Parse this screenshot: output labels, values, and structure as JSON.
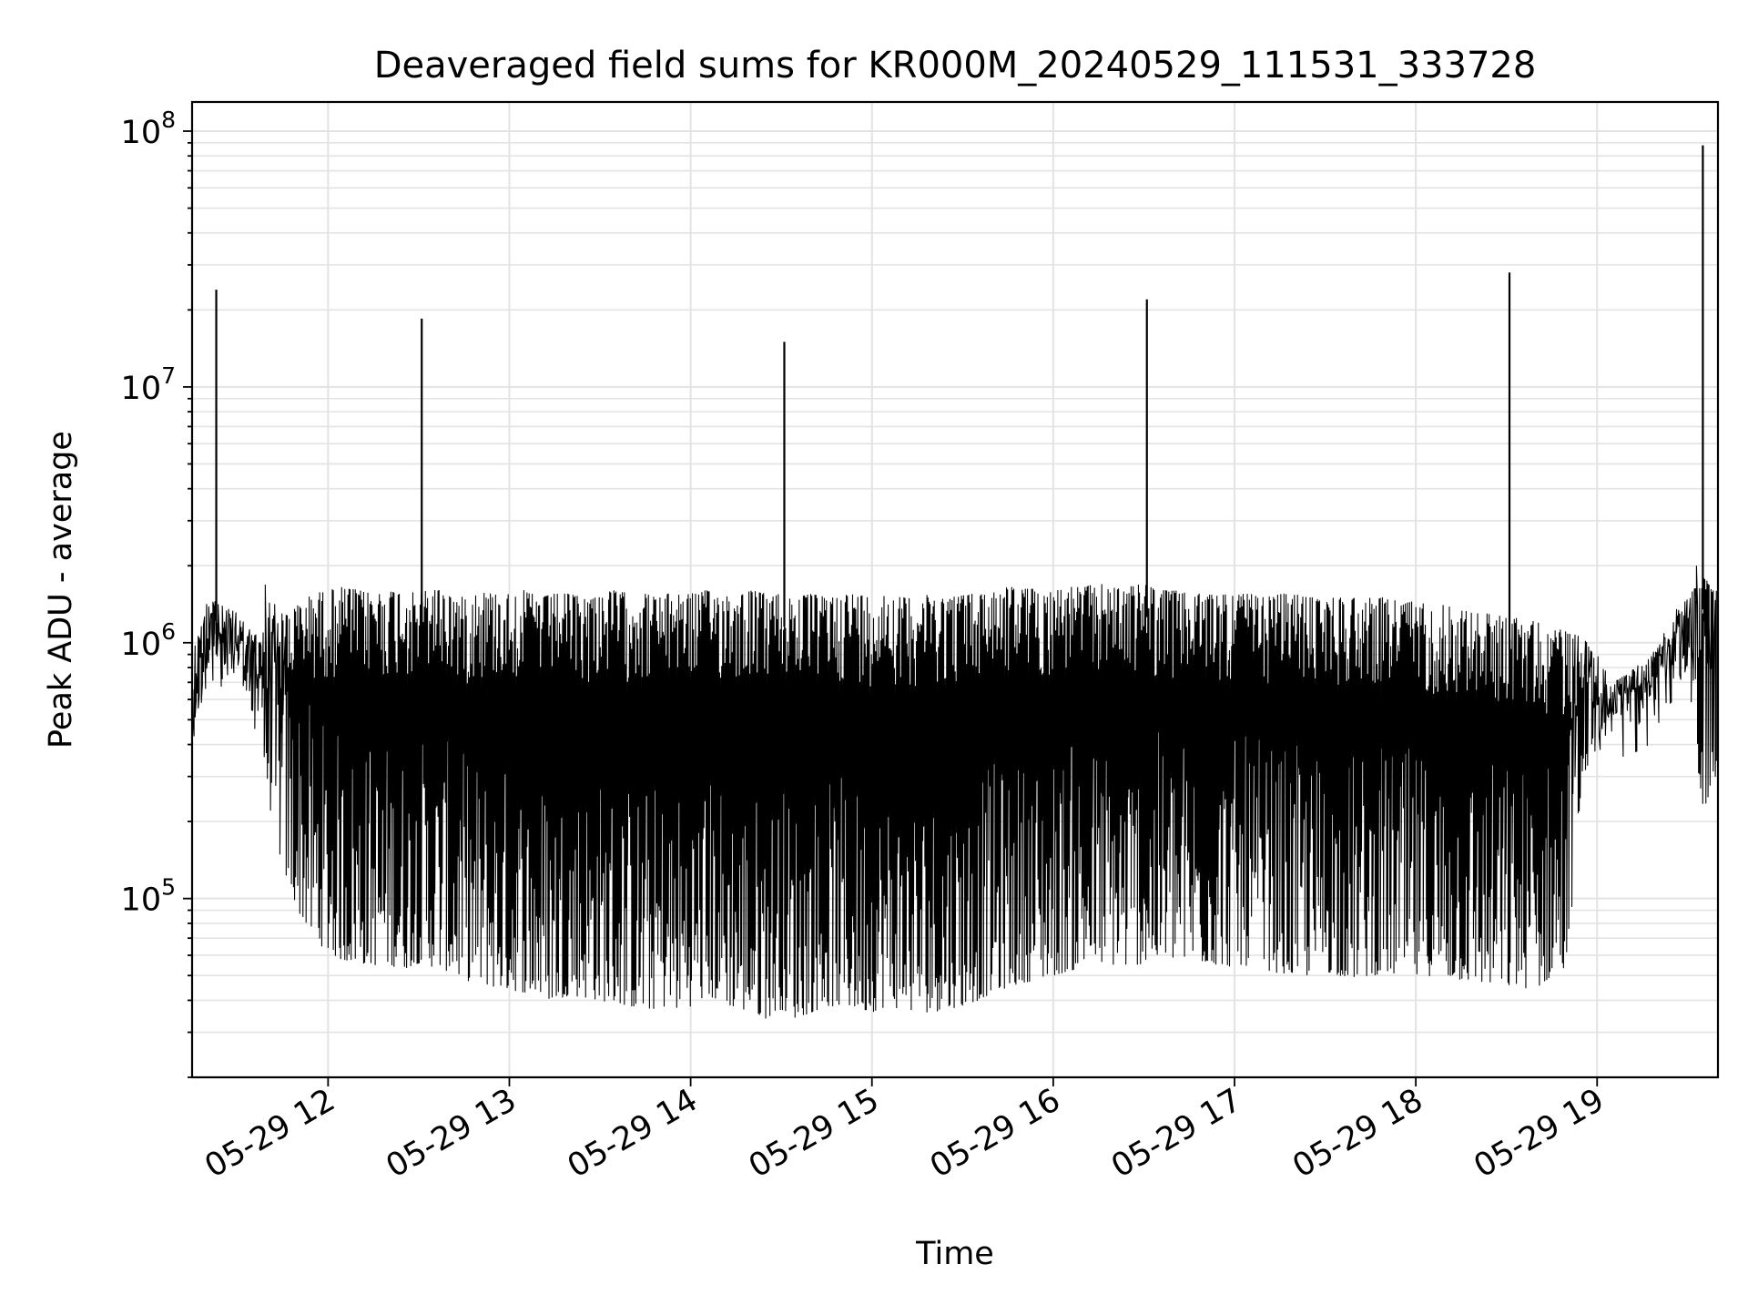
{
  "chart_data": {
    "type": "line",
    "title": "Deaveraged field sums for KR000M_20240529_111531_333728",
    "xlabel": "Time",
    "ylabel": "Peak ADU - average",
    "y_scale": "log",
    "ylim": [
      20000,
      130000000
    ],
    "xlim": [
      "2024-05-29 11:15",
      "2024-05-29 19:40"
    ],
    "grid": true,
    "legend": "none",
    "line_color": "#000000",
    "x_ticks": [
      {
        "label": "05-29 12",
        "time": "2024-05-29 12:00"
      },
      {
        "label": "05-29 13",
        "time": "2024-05-29 13:00"
      },
      {
        "label": "05-29 14",
        "time": "2024-05-29 14:00"
      },
      {
        "label": "05-29 15",
        "time": "2024-05-29 15:00"
      },
      {
        "label": "05-29 16",
        "time": "2024-05-29 16:00"
      },
      {
        "label": "05-29 17",
        "time": "2024-05-29 17:00"
      },
      {
        "label": "05-29 18",
        "time": "2024-05-29 18:00"
      },
      {
        "label": "05-29 19",
        "time": "2024-05-29 19:00"
      }
    ],
    "y_ticks": [
      {
        "base": "10",
        "exp": "5",
        "value": 100000
      },
      {
        "base": "10",
        "exp": "6",
        "value": 1000000
      },
      {
        "base": "10",
        "exp": "7",
        "value": 10000000
      },
      {
        "base": "10",
        "exp": "8",
        "value": 100000000
      }
    ],
    "series": [
      {
        "type": "envelope",
        "x": [
          "2024-05-29 11:15",
          "2024-05-29 11:20",
          "2024-05-29 11:25",
          "2024-05-29 11:30",
          "2024-05-29 11:35",
          "2024-05-29 11:40",
          "2024-05-29 11:45",
          "2024-05-29 11:50",
          "2024-05-29 11:55",
          "2024-05-29 12:00",
          "2024-05-29 12:05",
          "2024-05-29 12:10",
          "2024-05-29 12:15",
          "2024-05-29 12:20",
          "2024-05-29 12:25",
          "2024-05-29 12:30",
          "2024-05-29 12:35",
          "2024-05-29 12:40",
          "2024-05-29 12:45",
          "2024-05-29 12:50",
          "2024-05-29 12:55",
          "2024-05-29 13:00",
          "2024-05-29 13:05",
          "2024-05-29 13:10",
          "2024-05-29 13:15",
          "2024-05-29 13:20",
          "2024-05-29 13:25",
          "2024-05-29 13:30",
          "2024-05-29 13:35",
          "2024-05-29 13:40",
          "2024-05-29 13:45",
          "2024-05-29 13:50",
          "2024-05-29 13:55",
          "2024-05-29 14:00",
          "2024-05-29 14:05",
          "2024-05-29 14:10",
          "2024-05-29 14:15",
          "2024-05-29 14:20",
          "2024-05-29 14:25",
          "2024-05-29 14:30",
          "2024-05-29 14:35",
          "2024-05-29 14:40",
          "2024-05-29 14:45",
          "2024-05-29 14:50",
          "2024-05-29 14:55",
          "2024-05-29 15:00",
          "2024-05-29 15:05",
          "2024-05-29 15:10",
          "2024-05-29 15:15",
          "2024-05-29 15:20",
          "2024-05-29 15:25",
          "2024-05-29 15:30",
          "2024-05-29 15:35",
          "2024-05-29 15:40",
          "2024-05-29 15:45",
          "2024-05-29 15:50",
          "2024-05-29 15:55",
          "2024-05-29 16:00",
          "2024-05-29 16:05",
          "2024-05-29 16:10",
          "2024-05-29 16:15",
          "2024-05-29 16:20",
          "2024-05-29 16:25",
          "2024-05-29 16:30",
          "2024-05-29 16:35",
          "2024-05-29 16:40",
          "2024-05-29 16:45",
          "2024-05-29 16:50",
          "2024-05-29 16:55",
          "2024-05-29 17:00",
          "2024-05-29 17:05",
          "2024-05-29 17:10",
          "2024-05-29 17:15",
          "2024-05-29 17:20",
          "2024-05-29 17:25",
          "2024-05-29 17:30",
          "2024-05-29 17:35",
          "2024-05-29 17:40",
          "2024-05-29 17:45",
          "2024-05-29 17:50",
          "2024-05-29 17:55",
          "2024-05-29 18:00",
          "2024-05-29 18:05",
          "2024-05-29 18:10",
          "2024-05-29 18:15",
          "2024-05-29 18:20",
          "2024-05-29 18:25",
          "2024-05-29 18:30",
          "2024-05-29 18:35",
          "2024-05-29 18:40",
          "2024-05-29 18:45",
          "2024-05-29 18:50",
          "2024-05-29 18:55",
          "2024-05-29 19:00",
          "2024-05-29 19:05",
          "2024-05-29 19:10",
          "2024-05-29 19:15",
          "2024-05-29 19:20",
          "2024-05-29 19:25",
          "2024-05-29 19:30",
          "2024-05-29 19:35",
          "2024-05-29 19:40"
        ],
        "high": [
          900000,
          1500000,
          1400000,
          1300000,
          1100000,
          1250000,
          1300000,
          1400000,
          1550000,
          1600000,
          1650000,
          1600000,
          1550000,
          1600000,
          1600000,
          1550000,
          1650000,
          1550000,
          1500000,
          1600000,
          1550000,
          1550000,
          1600000,
          1500000,
          1550000,
          1550000,
          1500000,
          1550000,
          1600000,
          1550000,
          1550000,
          1500000,
          1600000,
          1550000,
          1600000,
          1550000,
          1550000,
          1600000,
          1550000,
          1550000,
          1500000,
          1550000,
          1500000,
          1550000,
          1550000,
          1500000,
          1550000,
          1500000,
          1500000,
          1550000,
          1500000,
          1550000,
          1550000,
          1600000,
          1650000,
          1650000,
          1600000,
          1600000,
          1650000,
          1650000,
          1700000,
          1650000,
          1650000,
          1700000,
          1600000,
          1600000,
          1550000,
          1550000,
          1550000,
          1550000,
          1550000,
          1500000,
          1550000,
          1550000,
          1500000,
          1500000,
          1500000,
          1500000,
          1500000,
          1500000,
          1450000,
          1450000,
          1400000,
          1400000,
          1350000,
          1300000,
          1300000,
          1250000,
          1250000,
          1200000,
          1150000,
          1100000,
          1050000,
          900000,
          700000,
          750000,
          850000,
          950000,
          1300000,
          1500000,
          1800000,
          1600000
        ],
        "low": [
          330000,
          750000,
          850000,
          800000,
          500000,
          250000,
          130000,
          90000,
          70000,
          62000,
          57000,
          56000,
          55000,
          55000,
          53000,
          56000,
          54000,
          52000,
          48000,
          47000,
          45000,
          44000,
          43000,
          41000,
          40000,
          42000,
          41000,
          40000,
          39000,
          38000,
          36000,
          38000,
          37000,
          38000,
          41000,
          40000,
          37000,
          36000,
          34000,
          37000,
          34000,
          36000,
          38000,
          38000,
          37000,
          36000,
          38000,
          37000,
          36000,
          36000,
          37000,
          38000,
          40000,
          43000,
          45000,
          47000,
          48000,
          50000,
          52000,
          54000,
          56000,
          55000,
          54000,
          56000,
          57000,
          58000,
          57000,
          56000,
          55000,
          54000,
          55000,
          53000,
          51000,
          50000,
          50000,
          52000,
          50000,
          49000,
          50000,
          51000,
          50000,
          49000,
          50000,
          49000,
          48000,
          47000,
          46000,
          45000,
          45000,
          44000,
          50000,
          53000,
          290000,
          380000,
          470000,
          550000,
          600000,
          650000,
          700000,
          730000,
          220000,
          300000
        ]
      },
      {
        "type": "spikes",
        "x": [
          "2024-05-29 11:23",
          "2024-05-29 12:31",
          "2024-05-29 14:31",
          "2024-05-29 16:31",
          "2024-05-29 18:31",
          "2024-05-29 19:35"
        ],
        "values": [
          24000000,
          18500000,
          15000000,
          22000000,
          28000000,
          88000000
        ]
      }
    ]
  }
}
